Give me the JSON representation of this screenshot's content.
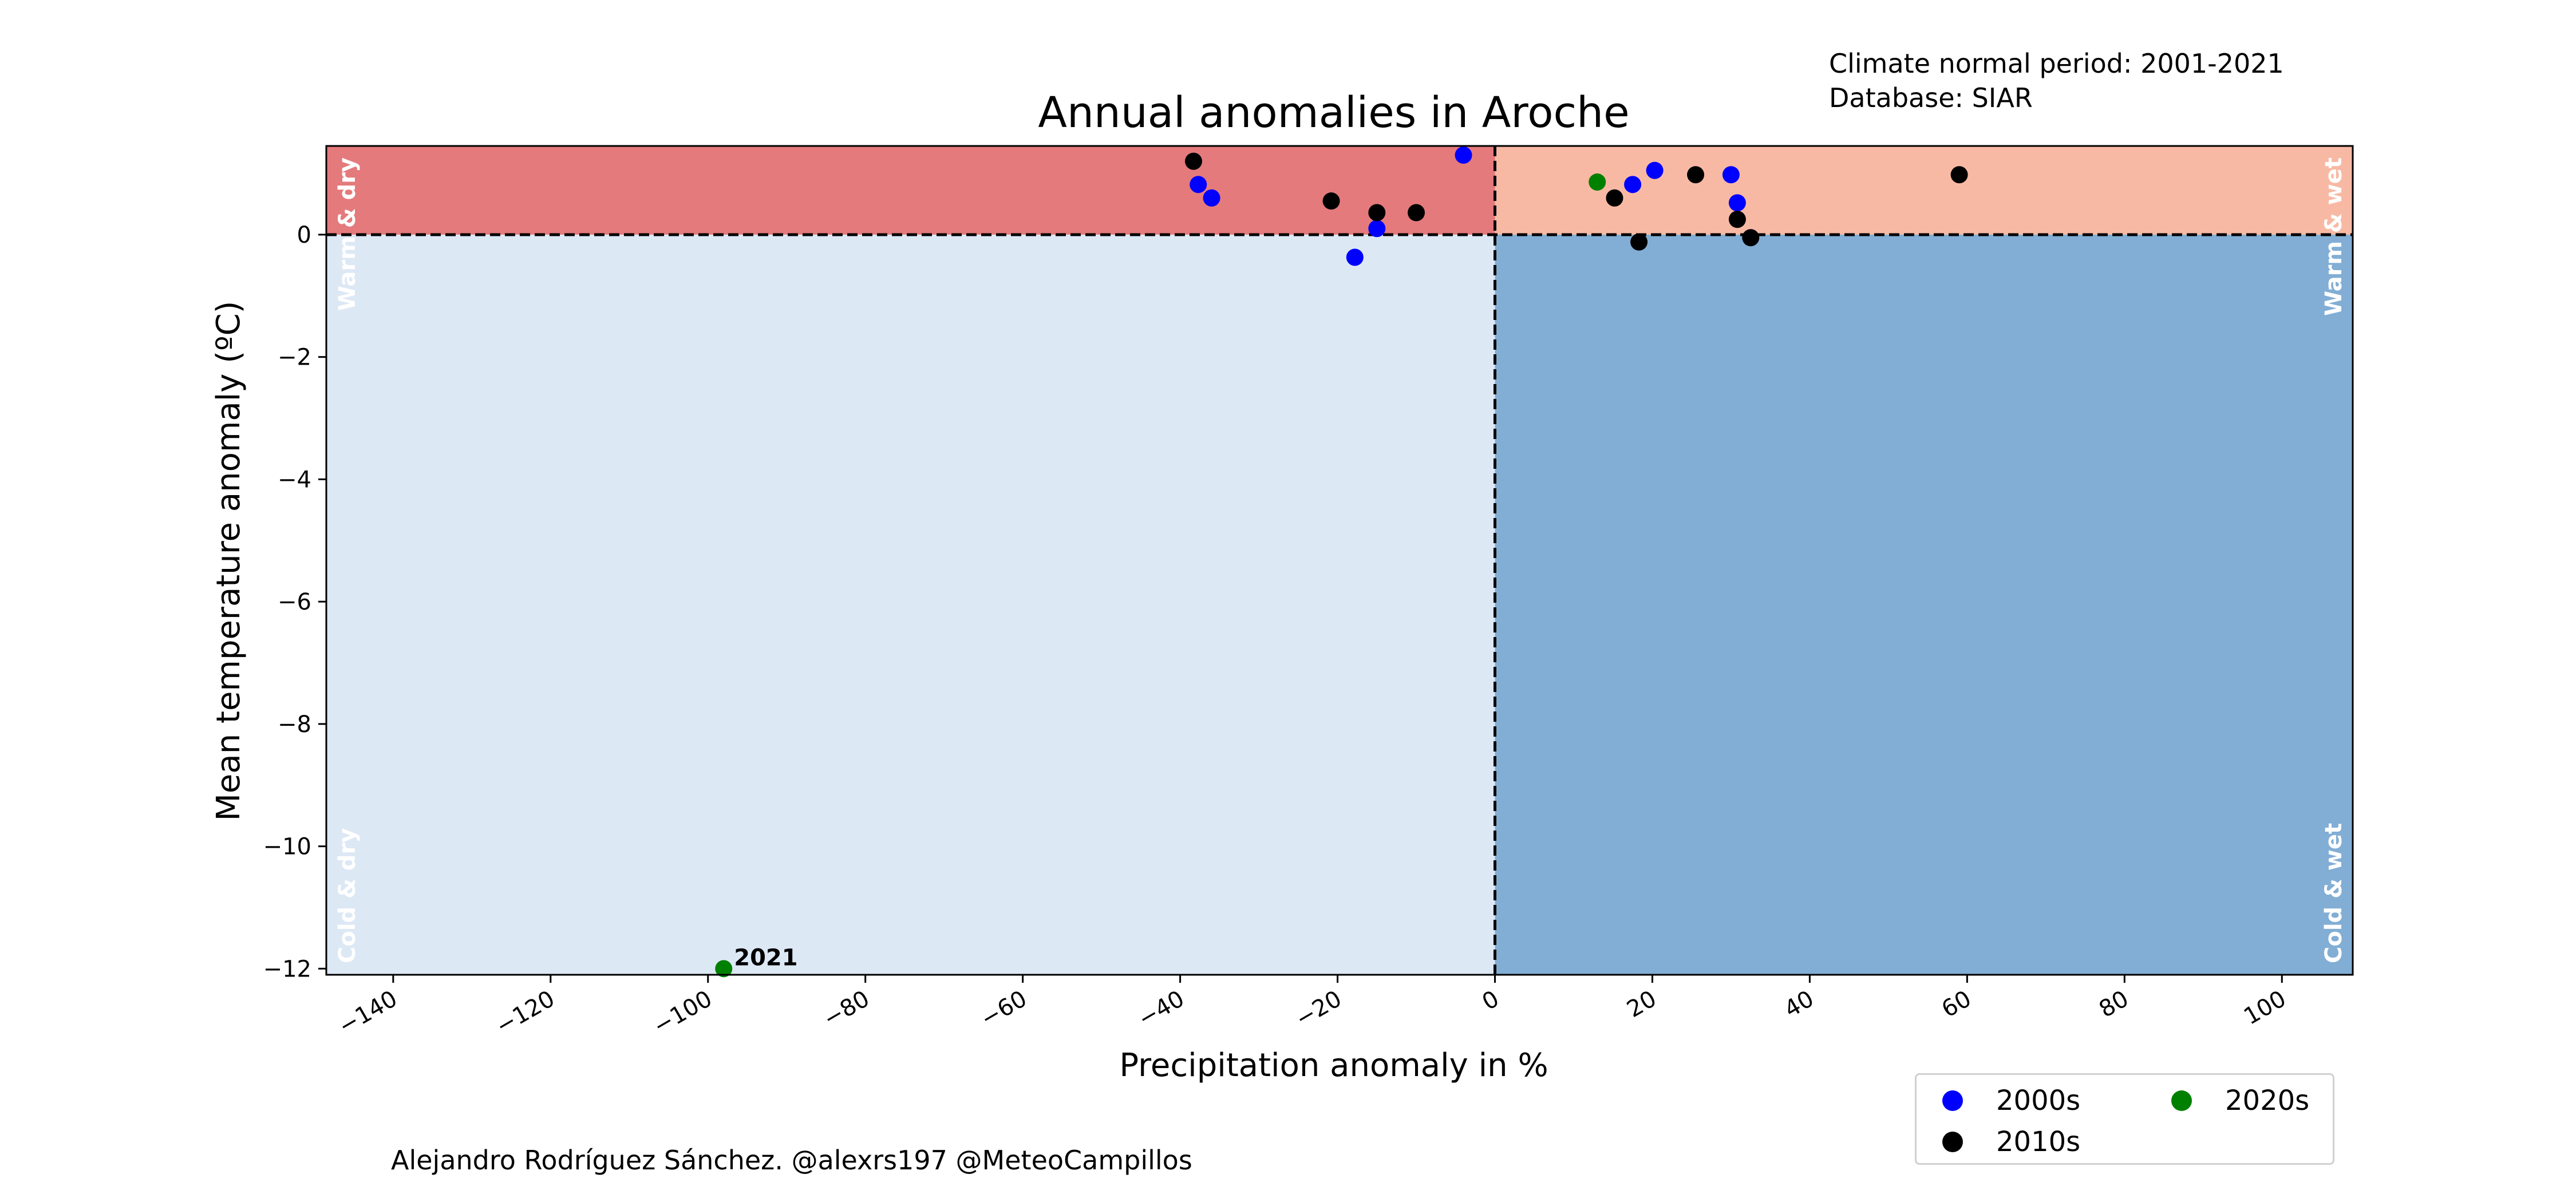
{
  "colors": {
    "warm_dry": "#e47a7c",
    "warm_wet": "#f8b9a4",
    "cold_dry": "#dde8f5",
    "cold_wet": "#82aed5"
  },
  "notes": {
    "normal_period": "Climate normal period: 2001-2021",
    "database": "Database: SIAR",
    "credit": "Alejandro Rodríguez Sánchez. @alexrs197 @MeteoCampillos"
  },
  "chart_data": {
    "type": "scatter",
    "title": "Annual anomalies in Aroche",
    "xlabel": "Precipitation anomaly in %",
    "ylabel": "Mean temperature anomaly (ºC)",
    "xlim": [
      -148.5,
      109
    ],
    "ylim": [
      -12.1,
      1.45
    ],
    "xticks": [
      -140,
      -120,
      -100,
      -80,
      -60,
      -40,
      -20,
      0,
      20,
      40,
      60,
      80,
      100
    ],
    "xtick_labels": [
      "−140",
      "−120",
      "−100",
      "−80",
      "−60",
      "−40",
      "−20",
      "0",
      "20",
      "40",
      "60",
      "80",
      "100"
    ],
    "yticks": [
      0,
      -2,
      -4,
      -6,
      -8,
      -10,
      -12
    ],
    "ytick_labels": [
      "0",
      "−2",
      "−4",
      "−6",
      "−8",
      "−10",
      "−12"
    ],
    "grid": false,
    "quadrants": [
      {
        "label": "Warm & dry",
        "x": "negative",
        "y": "positive",
        "color": "#e47a7c"
      },
      {
        "label": "Warm & wet",
        "x": "positive",
        "y": "positive",
        "color": "#f8b9a4"
      },
      {
        "label": "Cold & dry",
        "x": "negative",
        "y": "negative",
        "color": "#dde8f5"
      },
      {
        "label": "Cold & wet",
        "x": "positive",
        "y": "negative",
        "color": "#82aed5"
      }
    ],
    "legend_position": "bottom-right",
    "series": [
      {
        "name": "2000s",
        "color": "#0000ff",
        "points": [
          [
            -37.7,
            0.82
          ],
          [
            -36,
            0.6
          ],
          [
            -17.8,
            -0.37
          ],
          [
            -15,
            0.1
          ],
          [
            -4,
            1.3
          ],
          [
            17.5,
            0.82
          ],
          [
            20.3,
            1.05
          ],
          [
            30,
            0.98
          ],
          [
            30.8,
            0.52
          ]
        ]
      },
      {
        "name": "2010s",
        "color": "#000000",
        "points": [
          [
            -38.3,
            1.2
          ],
          [
            -20.8,
            0.55
          ],
          [
            -15,
            0.36
          ],
          [
            -10,
            0.36
          ],
          [
            15.2,
            0.6
          ],
          [
            18.3,
            -0.12
          ],
          [
            25.5,
            0.98
          ],
          [
            30.8,
            0.25
          ],
          [
            32.5,
            -0.05
          ],
          [
            59,
            0.98
          ]
        ]
      },
      {
        "name": "2020s",
        "color": "#008000",
        "points": [
          [
            13,
            0.86
          ],
          [
            -98,
            -12
          ]
        ]
      }
    ],
    "annotations": [
      {
        "text": "2021",
        "x": -98,
        "y": -12
      }
    ]
  }
}
